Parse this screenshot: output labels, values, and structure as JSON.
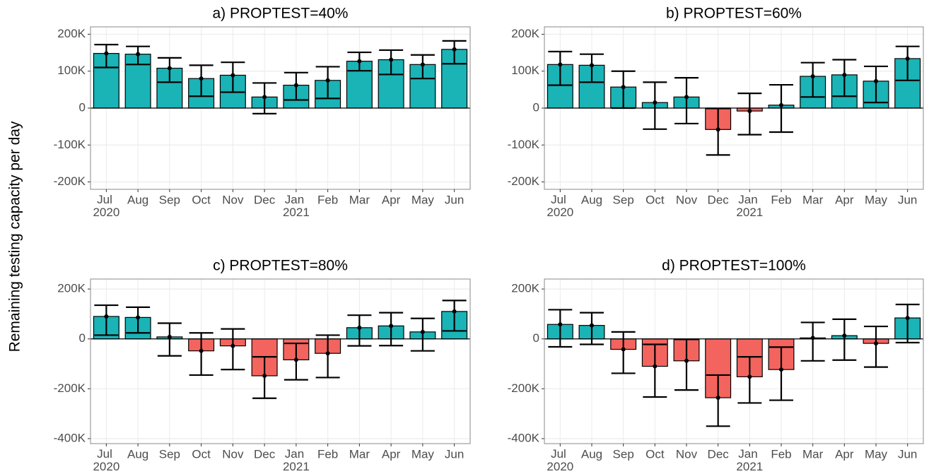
{
  "ylabel": "Remaining testing capacity per day",
  "chart_data": [
    {
      "type": "bar",
      "title": "a) PROPTEST=40%",
      "categories": [
        "Jul 2020",
        "Aug",
        "Sep",
        "Oct",
        "Nov",
        "Dec",
        "Jan 2021",
        "Feb",
        "Mar",
        "Apr",
        "May",
        "Jun"
      ],
      "values": [
        148000,
        146000,
        108000,
        80000,
        89000,
        30000,
        62000,
        75000,
        127000,
        131000,
        118000,
        159000
      ],
      "lower": [
        110000,
        118000,
        70000,
        32000,
        43000,
        -15000,
        22000,
        26000,
        101000,
        91000,
        80000,
        120000
      ],
      "upper": [
        172000,
        167000,
        136000,
        116000,
        124000,
        68000,
        96000,
        112000,
        151000,
        157000,
        144000,
        182000
      ],
      "positive_color": "#1ab3b6",
      "negative_color": "#f3645f",
      "ylim": [
        -220000,
        220000
      ],
      "yticks": [
        {
          "value": -200000,
          "label": "-200K"
        },
        {
          "value": -100000,
          "label": "-100K"
        },
        0,
        {
          "value": 100000,
          "label": "100K"
        },
        {
          "value": 200000,
          "label": "200K"
        }
      ],
      "grid": true
    },
    {
      "type": "bar",
      "title": "b) PROPTEST=60%",
      "categories": [
        "Jul 2020",
        "Aug",
        "Sep",
        "Oct",
        "Nov",
        "Dec",
        "Jan 2021",
        "Feb",
        "Mar",
        "Apr",
        "May",
        "Jun"
      ],
      "values": [
        118000,
        116000,
        57000,
        15000,
        30000,
        -58000,
        -8000,
        8000,
        86000,
        90000,
        73000,
        134000
      ],
      "lower": [
        62000,
        70000,
        0,
        -57000,
        -42000,
        -127000,
        -72000,
        -65000,
        30000,
        32000,
        15000,
        75000
      ],
      "upper": [
        153000,
        146000,
        100000,
        70000,
        82000,
        -1000,
        40000,
        63000,
        123000,
        131000,
        113000,
        167000
      ],
      "positive_color": "#1ab3b6",
      "negative_color": "#f3645f",
      "ylim": [
        -220000,
        220000
      ],
      "yticks": [
        {
          "value": -200000,
          "label": "-200K"
        },
        {
          "value": -100000,
          "label": "-100K"
        },
        0,
        {
          "value": 100000,
          "label": "100K"
        },
        {
          "value": 200000,
          "label": "200K"
        }
      ],
      "grid": true
    },
    {
      "type": "bar",
      "title": "c) PROPTEST=80%",
      "categories": [
        "Jul 2020",
        "Aug",
        "Sep",
        "Oct",
        "Nov",
        "Dec",
        "Jan 2021",
        "Feb",
        "Mar",
        "Apr",
        "May",
        "Jun"
      ],
      "values": [
        90000,
        86000,
        8000,
        -48000,
        -28000,
        -148000,
        -84000,
        -58000,
        45000,
        52000,
        28000,
        110000
      ],
      "lower": [
        15000,
        24000,
        -68000,
        -145000,
        -123000,
        -238000,
        -164000,
        -155000,
        -28000,
        -27000,
        -48000,
        32000
      ],
      "upper": [
        135000,
        127000,
        63000,
        24000,
        40000,
        -72000,
        -18000,
        15000,
        95000,
        105000,
        82000,
        154000
      ],
      "positive_color": "#1ab3b6",
      "negative_color": "#f3645f",
      "ylim": [
        -420000,
        240000
      ],
      "yticks": [
        {
          "value": -400000,
          "label": "-400K"
        },
        {
          "value": -200000,
          "label": "-200K"
        },
        0,
        {
          "value": 200000,
          "label": "200K"
        }
      ],
      "grid": true
    },
    {
      "type": "bar",
      "title": "d) PROPTEST=100%",
      "categories": [
        "Jul 2020",
        "Aug",
        "Sep",
        "Oct",
        "Nov",
        "Dec",
        "Jan 2021",
        "Feb",
        "Mar",
        "Apr",
        "May",
        "Jun"
      ],
      "values": [
        58000,
        54000,
        -42000,
        -110000,
        -88000,
        -236000,
        -152000,
        -123000,
        4000,
        13000,
        -18000,
        84000
      ],
      "lower": [
        -32000,
        -22000,
        -138000,
        -233000,
        -205000,
        -350000,
        -257000,
        -246000,
        -88000,
        -85000,
        -113000,
        -15000
      ],
      "upper": [
        117000,
        105000,
        28000,
        -22000,
        -2000,
        -145000,
        -72000,
        -33000,
        66000,
        79000,
        50000,
        138000
      ],
      "positive_color": "#1ab3b6",
      "negative_color": "#f3645f",
      "ylim": [
        -420000,
        240000
      ],
      "yticks": [
        {
          "value": -400000,
          "label": "-400K"
        },
        {
          "value": -200000,
          "label": "-200K"
        },
        0,
        {
          "value": 200000,
          "label": "200K"
        }
      ],
      "grid": true
    }
  ]
}
